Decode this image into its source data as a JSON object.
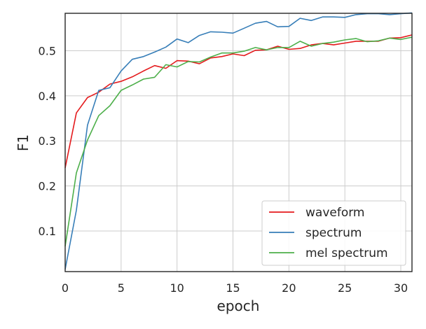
{
  "chart_data": {
    "type": "line",
    "xlabel": "epoch",
    "ylabel": "F1",
    "xlim": [
      0,
      31
    ],
    "ylim": [
      0.01,
      0.583
    ],
    "xticks": [
      0,
      5,
      10,
      15,
      20,
      25,
      30
    ],
    "yticks": [
      0.1,
      0.2,
      0.3,
      0.4,
      0.5
    ],
    "grid": true,
    "legend_position": "bottom-right",
    "series": [
      {
        "name": "waveform",
        "color": "#e41a1c",
        "x": [
          0,
          1,
          2,
          3,
          4,
          5,
          6,
          7,
          8,
          9,
          10,
          11,
          12,
          13,
          14,
          15,
          16,
          17,
          18,
          19,
          20,
          21,
          22,
          23,
          24,
          25,
          26,
          27,
          28,
          29,
          30,
          31
        ],
        "y": [
          0.24,
          0.362,
          0.396,
          0.408,
          0.426,
          0.432,
          0.442,
          0.455,
          0.467,
          0.461,
          0.478,
          0.477,
          0.471,
          0.484,
          0.487,
          0.493,
          0.489,
          0.501,
          0.502,
          0.51,
          0.503,
          0.505,
          0.513,
          0.516,
          0.513,
          0.517,
          0.521,
          0.521,
          0.521,
          0.528,
          0.529,
          0.535
        ]
      },
      {
        "name": "spectrum",
        "color": "#377eb8",
        "x": [
          0,
          1,
          2,
          3,
          4,
          5,
          6,
          7,
          8,
          9,
          10,
          11,
          12,
          13,
          14,
          15,
          16,
          17,
          18,
          19,
          20,
          21,
          22,
          23,
          24,
          25,
          26,
          27,
          28,
          29,
          30,
          31
        ],
        "y": [
          0.015,
          0.146,
          0.335,
          0.412,
          0.418,
          0.455,
          0.481,
          0.487,
          0.497,
          0.508,
          0.526,
          0.518,
          0.534,
          0.542,
          0.541,
          0.539,
          0.55,
          0.561,
          0.565,
          0.553,
          0.554,
          0.572,
          0.567,
          0.575,
          0.575,
          0.574,
          0.58,
          0.582,
          0.582,
          0.58,
          0.582,
          0.584
        ]
      },
      {
        "name": "mel spectrum",
        "color": "#4daf4a",
        "x": [
          0,
          1,
          2,
          3,
          4,
          5,
          6,
          7,
          8,
          9,
          10,
          11,
          12,
          13,
          14,
          15,
          16,
          17,
          18,
          19,
          20,
          21,
          22,
          23,
          24,
          25,
          26,
          27,
          28,
          29,
          30,
          31
        ],
        "y": [
          0.066,
          0.229,
          0.302,
          0.356,
          0.378,
          0.412,
          0.424,
          0.437,
          0.441,
          0.469,
          0.464,
          0.476,
          0.475,
          0.486,
          0.495,
          0.495,
          0.499,
          0.507,
          0.502,
          0.507,
          0.507,
          0.521,
          0.51,
          0.516,
          0.519,
          0.524,
          0.527,
          0.52,
          0.522,
          0.528,
          0.525,
          0.53
        ]
      }
    ]
  }
}
